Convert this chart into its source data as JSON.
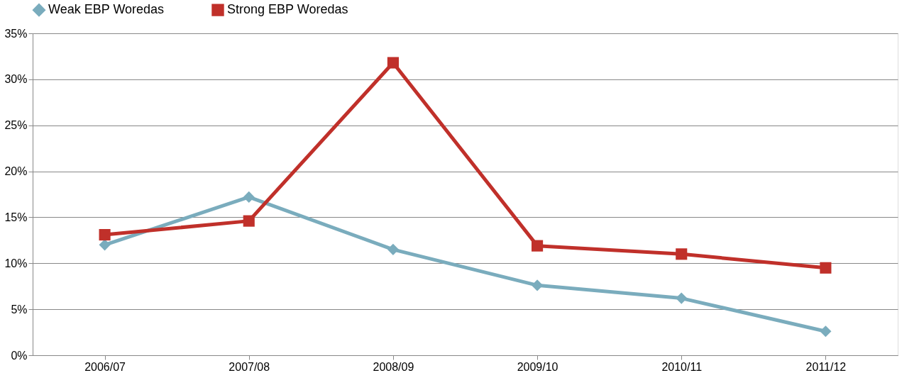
{
  "chart_data": {
    "type": "line",
    "categories": [
      "2006/07",
      "2007/08",
      "2008/09",
      "2009/10",
      "2010/11",
      "2011/12"
    ],
    "series": [
      {
        "name": "Weak EBP Woredas",
        "color": "#7aacbd",
        "marker": "diamond",
        "values": [
          12.0,
          17.2,
          11.5,
          7.6,
          6.2,
          2.6
        ]
      },
      {
        "name": "Strong EBP Woredas",
        "color": "#c0302a",
        "marker": "square",
        "values": [
          13.1,
          14.6,
          31.8,
          11.9,
          11.0,
          9.5
        ]
      }
    ],
    "ylim": [
      0,
      35
    ],
    "yticks": [
      {
        "value": 0,
        "label": "0%"
      },
      {
        "value": 5,
        "label": "5%"
      },
      {
        "value": 10,
        "label": "10%"
      },
      {
        "value": 15,
        "label": "15%"
      },
      {
        "value": 20,
        "label": "20%"
      },
      {
        "value": 25,
        "label": "25%"
      },
      {
        "value": 30,
        "label": "30%"
      },
      {
        "value": 35,
        "label": "35%"
      }
    ],
    "grid": "y",
    "legend": "top",
    "line_style": "solid"
  }
}
